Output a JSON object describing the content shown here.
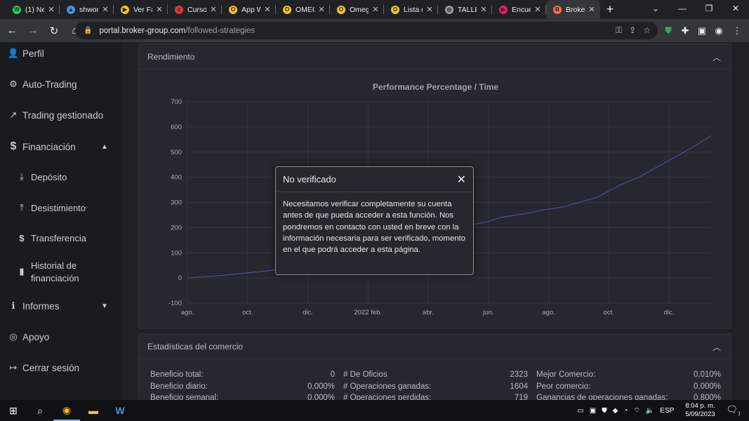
{
  "browser": {
    "tabs": [
      {
        "label": "(1) Ne",
        "fav_color": "#25d366",
        "fav_glyph": "W"
      },
      {
        "label": "shwon",
        "fav_color": "#4a90e2",
        "fav_glyph": "▲"
      },
      {
        "label": "Ver Fa",
        "fav_color": "#f5c518",
        "fav_glyph": "▶"
      },
      {
        "label": "Curso",
        "fav_color": "#e53935",
        "fav_glyph": "c"
      },
      {
        "label": "App W",
        "fav_color": "#f5c518",
        "fav_glyph": "O"
      },
      {
        "label": "OMEG",
        "fav_color": "#f5c518",
        "fav_glyph": "O"
      },
      {
        "label": "Omeg",
        "fav_color": "#f5c518",
        "fav_glyph": "O"
      },
      {
        "label": "Lista d",
        "fav_color": "#f5c518",
        "fav_glyph": "O"
      },
      {
        "label": "TALLE",
        "fav_color": "#9aa0a6",
        "fav_glyph": "◎"
      },
      {
        "label": "Encue",
        "fav_color": "#e91e63",
        "fav_glyph": "▶"
      },
      {
        "label": "Broke",
        "fav_color": "#ff7043",
        "fav_glyph": "B",
        "active": true
      }
    ],
    "url_host": "portal.broker-group.com",
    "url_path": "/followed-strategies"
  },
  "sidebar": {
    "items": [
      {
        "label": "Perfil",
        "icon": "user-icon",
        "glyph": "👤"
      },
      {
        "label": "Auto-Trading",
        "icon": "brain-icon",
        "glyph": "⚙"
      },
      {
        "label": "Trading gestionado",
        "icon": "trend-icon",
        "glyph": "↗"
      },
      {
        "label": "Financiación",
        "icon": "dollar-icon",
        "glyph": "$"
      },
      {
        "label": "Depósito",
        "icon": "download-icon",
        "glyph": "⤓"
      },
      {
        "label": "Desistimiento",
        "icon": "upload-icon",
        "glyph": "⤒"
      },
      {
        "label": "Transferencia",
        "icon": "transfer-icon",
        "glyph": "$"
      },
      {
        "label_line1": "Historial de",
        "label_line2": "financiación",
        "icon": "file-icon",
        "glyph": "▮"
      },
      {
        "label": "Informes",
        "icon": "info-icon",
        "glyph": "ℹ"
      },
      {
        "label": "Apoyo",
        "icon": "lifebuoy-icon",
        "glyph": "◎"
      },
      {
        "label": "Cerrar sesión",
        "icon": "logout-icon",
        "glyph": "↦"
      }
    ]
  },
  "performance": {
    "header": "Rendimiento"
  },
  "chart_data": {
    "type": "line",
    "title": "Performance Percentage / Time",
    "xlabel": "",
    "ylabel": "",
    "ylim": [
      -100,
      700
    ],
    "yticks": [
      -100,
      0,
      100,
      200,
      300,
      400,
      500,
      600,
      700
    ],
    "xticks": [
      "ago.",
      "oct.",
      "dic.",
      "2022 feb.",
      "abr.",
      "jun.",
      "ago.",
      "oct.",
      "dic."
    ],
    "xrange": [
      0,
      8.7
    ],
    "grid": true,
    "line_color": "#4b4f8c",
    "series": [
      {
        "x": [
          0,
          0.3,
          0.6,
          1.0,
          1.4,
          1.8,
          2.0,
          2.3,
          2.6,
          3.0,
          3.3,
          3.7,
          4.0,
          4.4,
          4.8,
          5.0,
          5.2,
          5.6,
          5.9,
          6.2,
          6.5,
          6.8,
          7.0,
          7.2,
          7.5,
          7.8,
          8.1,
          8.4,
          8.7
        ],
        "y": [
          0,
          5,
          10,
          20,
          30,
          45,
          55,
          70,
          90,
          110,
          140,
          165,
          190,
          205,
          215,
          225,
          240,
          255,
          270,
          280,
          300,
          320,
          345,
          370,
          400,
          440,
          480,
          520,
          565
        ]
      }
    ]
  },
  "modal": {
    "title": "No verificado",
    "body": "Necesitamos verificar completamente su cuenta antes de que pueda acceder a esta función. Nos pondremos en contacto con usted en breve con la información necesaria para ser verificado, momento en el que podrá acceder a esta página."
  },
  "stats": {
    "header": "Estadísticas del comercio",
    "col1": [
      {
        "label": "Beneficio total:",
        "value": "0"
      },
      {
        "label": "Beneficio diario:",
        "value": "0,000%"
      },
      {
        "label": "Beneficio semanal:",
        "value": "0,000%"
      }
    ],
    "col2": [
      {
        "label": "# De Oficios",
        "value": "2323"
      },
      {
        "label": "# Operaciones ganadas:",
        "value": "1604"
      },
      {
        "label": "# Operaciones perdidas:",
        "value": "719"
      }
    ],
    "col3": [
      {
        "label": "Mejor Comercio:",
        "value": "0,010%"
      },
      {
        "label": "Peor comercio:",
        "value": "0,000%"
      },
      {
        "label": "Ganancias de operaciones ganadas:",
        "value": "0,800%"
      }
    ]
  },
  "taskbar": {
    "lang": "ESP",
    "time": "8:04 p. m.",
    "date": "5/09/2023",
    "notif_count": "1"
  }
}
